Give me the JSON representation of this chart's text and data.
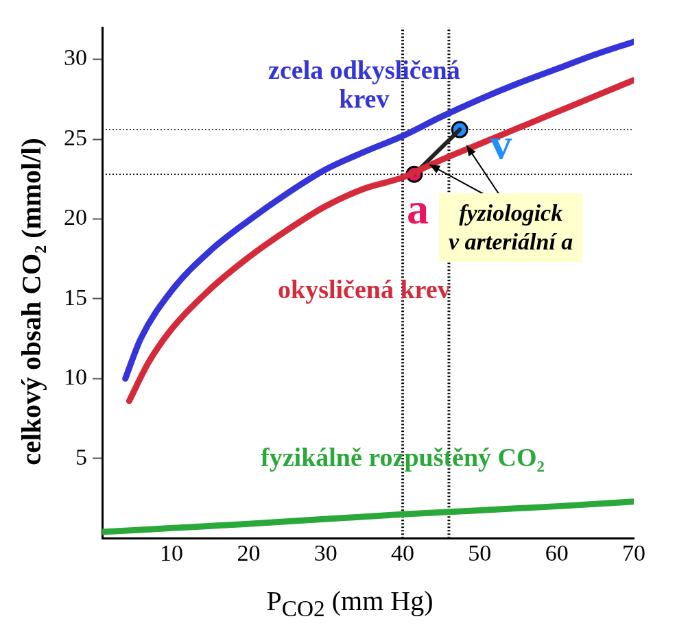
{
  "chart_data": {
    "type": "line",
    "xlabel": "P$_{CO2}$ (mm Hg)",
    "ylabel": "celkový obsah  CO₂ (mmol/l)",
    "xlim": [
      1,
      70
    ],
    "xticks": [
      10,
      20,
      30,
      40,
      50,
      60,
      70
    ],
    "ylim": [
      0,
      32
    ],
    "yticks": [
      5,
      10,
      15,
      20,
      25,
      30
    ],
    "grid": false,
    "legend": false,
    "marker": "none",
    "series": [
      {
        "name": "zcela odkysličená krev",
        "color": "#3434d8",
        "x": [
          4,
          6,
          10,
          15,
          20,
          25,
          30,
          35,
          40,
          45,
          50,
          55,
          60,
          65,
          70
        ],
        "values": [
          10,
          12.5,
          15.5,
          18,
          19.9,
          21.6,
          23.1,
          24.2,
          25.2,
          26.4,
          27.5,
          28.5,
          29.4,
          30.3,
          31.1
        ]
      },
      {
        "name": "okysličená krev",
        "color": "#d42a3a",
        "x": [
          4.5,
          7,
          10,
          15,
          20,
          25,
          30,
          35,
          40,
          45,
          50,
          55,
          60,
          65,
          70
        ],
        "values": [
          8.6,
          11,
          13.1,
          15.6,
          17.6,
          19.3,
          20.8,
          21.9,
          22.6,
          23.7,
          24.7,
          25.7,
          26.7,
          27.7,
          28.7
        ]
      },
      {
        "name": "fyzikálně rozpuštěný CO₂",
        "color": "#2aa83a",
        "x": [
          1,
          20,
          40,
          60,
          70
        ],
        "values": [
          0.4,
          0.9,
          1.5,
          2.0,
          2.3
        ]
      },
      {
        "color": "#222222",
        "x": [
          41.5,
          47.4
        ],
        "values": [
          22.8,
          25.6
        ]
      },
      {
        "type": "scatter",
        "marker": "circle",
        "color": "#e8175d",
        "x": [
          41.5
        ],
        "values": [
          22.8
        ]
      },
      {
        "type": "scatter",
        "marker": "circle",
        "color": "#1e90ff",
        "x": [
          47.4
        ],
        "values": [
          25.6
        ]
      }
    ],
    "ref_lines": [
      {
        "axis": "y",
        "value": 25.6,
        "color": "#000000",
        "line_style": "dotted"
      },
      {
        "axis": "y",
        "value": 22.8,
        "color": "#000000",
        "line_style": "dotted"
      },
      {
        "axis": "x",
        "value": 40,
        "color": "#000000",
        "line_style": "dotted"
      },
      {
        "axis": "x",
        "value": 46,
        "color": "#000000",
        "line_style": "dotted"
      }
    ],
    "annotations": [
      {
        "text": "a",
        "x": 41.5,
        "y": 22.8
      },
      {
        "text": "v",
        "x": 47.4,
        "y": 25.6
      },
      {
        "text": "fyziologick",
        "x": 43.5,
        "y": 23.4
      },
      {
        "text": "v arteriální a",
        "x": 48.3,
        "y": 24.6
      }
    ]
  }
}
